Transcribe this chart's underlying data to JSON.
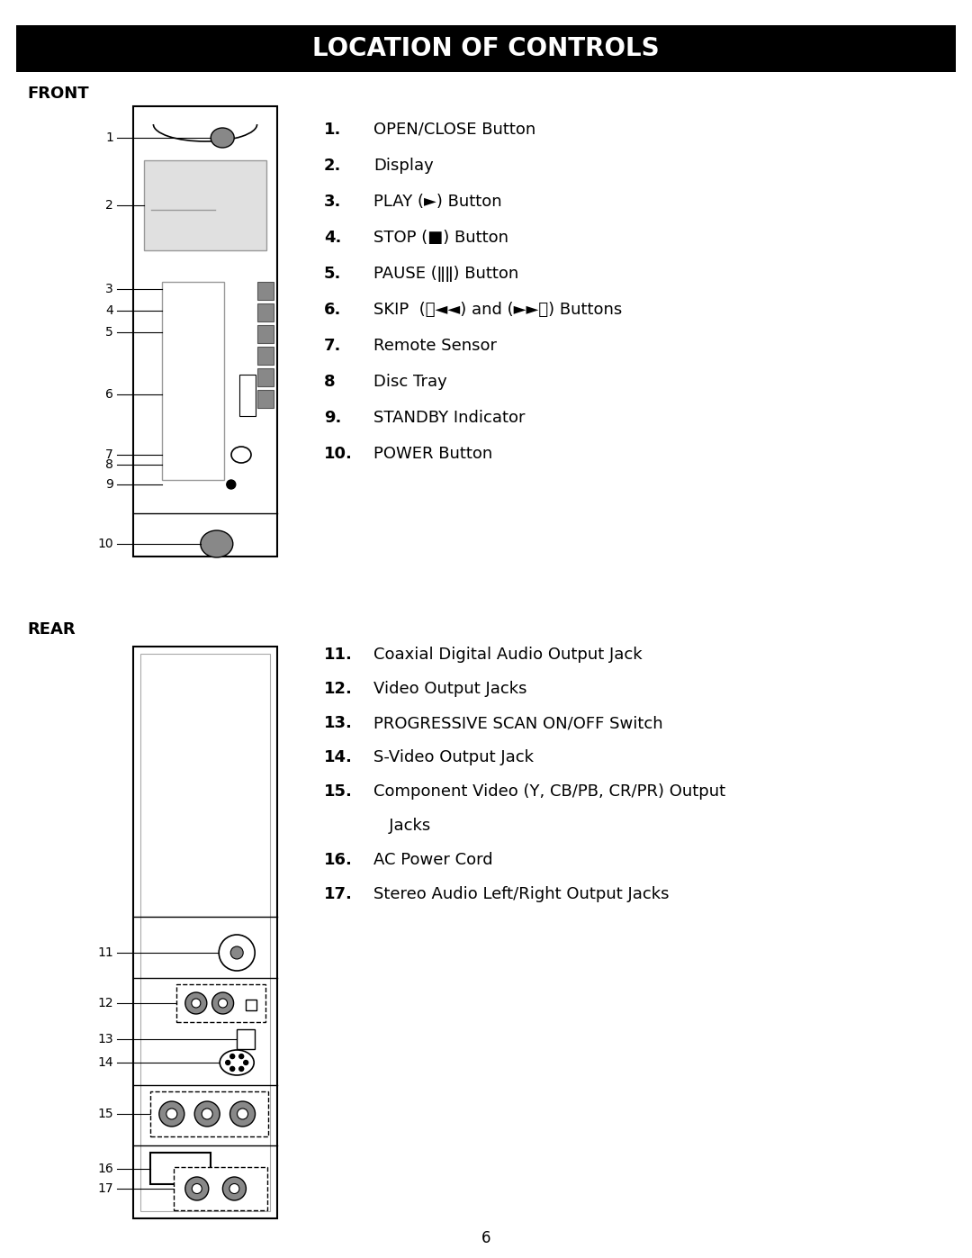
{
  "title": "LOCATION OF CONTROLS",
  "title_bg": "#000000",
  "title_color": "#ffffff",
  "bg_color": "#ffffff",
  "front_label": "FRONT",
  "rear_label": "REAR",
  "page_number": "6",
  "front_items": [
    [
      "1.",
      "OPEN/CLOSE Button"
    ],
    [
      "2.",
      "Display"
    ],
    [
      "3.",
      "PLAY (►) Button"
    ],
    [
      "4.",
      "STOP (■) Button"
    ],
    [
      "5.",
      "PAUSE (ǁǁ) Button"
    ],
    [
      "6.",
      "SKIP  (⧈◄◄) and (►►⧉) Buttons"
    ],
    [
      "7.",
      "Remote Sensor"
    ],
    [
      "8",
      "Disc Tray"
    ],
    [
      "9.",
      "STANDBY Indicator"
    ],
    [
      "10.",
      "POWER Button"
    ]
  ],
  "rear_items": [
    [
      "11.",
      "Coaxial Digital Audio Output Jack"
    ],
    [
      "12.",
      "Video Output Jacks"
    ],
    [
      "13.",
      "PROGRESSIVE SCAN ON/OFF Switch"
    ],
    [
      "14.",
      "S-Video Output Jack"
    ],
    [
      "15.",
      "Component Video (Y, CB/PB, CR/PR) Output"
    ],
    [
      "",
      "   Jacks"
    ],
    [
      "16.",
      "AC Power Cord"
    ],
    [
      "17.",
      "Stereo Audio Left/Right Output Jacks"
    ]
  ]
}
